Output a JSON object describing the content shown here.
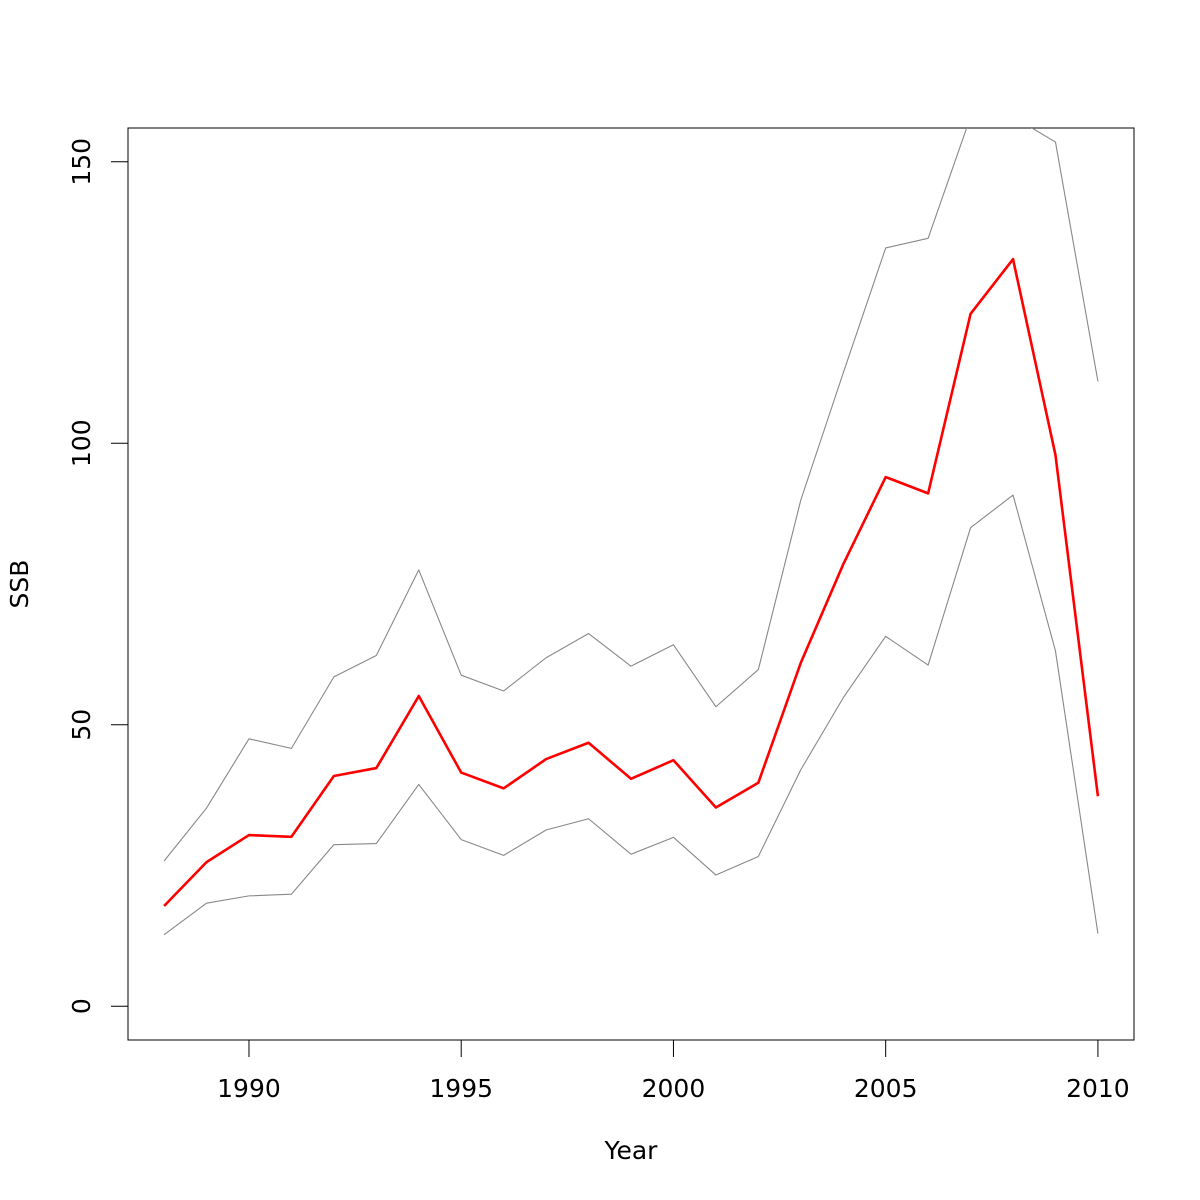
{
  "chart_data": {
    "type": "line",
    "title": "",
    "xlabel": "Year",
    "ylabel": "SSB",
    "xlim": [
      1987.15,
      2010.85
    ],
    "ylim": [
      -6,
      156
    ],
    "x_ticks": [
      1990,
      1995,
      2000,
      2005,
      2010
    ],
    "y_ticks": [
      0,
      50,
      100,
      150
    ],
    "grid": false,
    "legend": "none",
    "x": [
      1988,
      1989,
      1990,
      1991,
      1992,
      1993,
      1994,
      1995,
      1996,
      1997,
      1998,
      1999,
      2000,
      2001,
      2002,
      2003,
      2004,
      2005,
      2006,
      2007,
      2008,
      2009,
      2010
    ],
    "series": [
      {
        "color": "#ff0000",
        "role": "estimate",
        "values": [
          17.8,
          25.6,
          30.4,
          30.1,
          40.9,
          42.3,
          55.1,
          41.5,
          38.7,
          43.9,
          46.8,
          40.4,
          43.7,
          35.3,
          39.7,
          61.0,
          78.5,
          94.0,
          91.1,
          123.0,
          132.7,
          97.9,
          37.3
        ]
      },
      {
        "color": "#888888",
        "role": "upper",
        "values": [
          25.8,
          35.2,
          47.5,
          45.8,
          58.5,
          62.3,
          77.5,
          58.8,
          56.0,
          61.9,
          66.2,
          60.4,
          64.2,
          53.2,
          59.8,
          89.9,
          112.5,
          134.7,
          136.4,
          158.0,
          158.0,
          153.5,
          111.0
        ]
      },
      {
        "color": "#888888",
        "role": "lower",
        "values": [
          12.7,
          18.3,
          19.6,
          19.9,
          28.7,
          28.9,
          39.4,
          29.6,
          26.8,
          31.3,
          33.3,
          27.0,
          30.0,
          23.3,
          26.6,
          42.0,
          54.8,
          65.7,
          60.6,
          85.0,
          90.8,
          63.1,
          12.9
        ]
      }
    ]
  }
}
